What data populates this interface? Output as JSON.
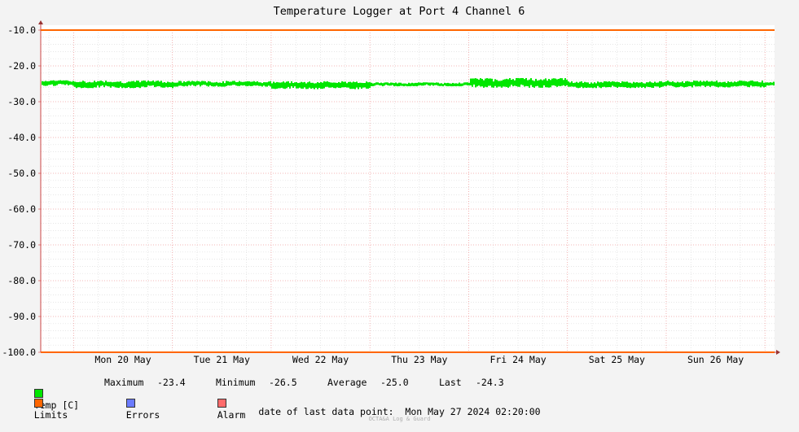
{
  "chart_data": {
    "type": "line",
    "title": "Temperature Logger at Port 4 Channel 6",
    "xlabel": "",
    "ylabel": "",
    "ylim": [
      -100.0,
      -10.0
    ],
    "y_ticks": [
      "-10.0",
      "-20.0",
      "-30.0",
      "-40.0",
      "-50.0",
      "-60.0",
      "-70.0",
      "-80.0",
      "-90.0",
      "-100.0"
    ],
    "x_tick_labels": [
      "Mon 20 May",
      "Tue 21 May",
      "Wed 22 May",
      "Thu 23 May",
      "Fri 24 May",
      "Sat 25 May",
      "Sun 26 May"
    ],
    "x_range_days": [
      "2024-05-19 16:00",
      "2024-05-27 02:20"
    ],
    "grid": true,
    "legend_position": "bottom-left",
    "series": [
      {
        "name": "Temp [C]",
        "color": "#00e600",
        "style": "band",
        "daily_values": [
          {
            "day": "2024-05-19",
            "min": -25.6,
            "max": -24.0
          },
          {
            "day": "2024-05-20",
            "min": -26.2,
            "max": -24.1
          },
          {
            "day": "2024-05-21",
            "min": -25.8,
            "max": -24.2
          },
          {
            "day": "2024-05-22",
            "min": -26.5,
            "max": -24.3
          },
          {
            "day": "2024-05-23",
            "min": -25.7,
            "max": -24.6
          },
          {
            "day": "2024-05-24",
            "min": -26.1,
            "max": -23.4
          },
          {
            "day": "2024-05-25",
            "min": -26.2,
            "max": -24.3
          },
          {
            "day": "2024-05-26",
            "min": -26.0,
            "max": -24.1
          },
          {
            "day": "2024-05-27",
            "min": -25.5,
            "max": -24.3
          }
        ]
      },
      {
        "name": "Limits",
        "color": "#ff6600",
        "upper": -10.0,
        "lower": -100.0
      },
      {
        "name": "Errors",
        "color": "#6b7bff"
      },
      {
        "name": "Alarm",
        "color": "#ff6b6b"
      }
    ],
    "stats": {
      "maximum_label": "Maximum",
      "maximum": "-23.4",
      "minimum_label": "Minimum",
      "minimum": "-26.5",
      "average_label": "Average",
      "average": "-25.0",
      "last_label": "Last",
      "last": "-24.3"
    }
  },
  "footer": {
    "last_data_label": "date of last data point:",
    "last_data_value": "Mon May 27 2024 02:20:00",
    "watermark": "OCTA&A Log & Guard"
  }
}
